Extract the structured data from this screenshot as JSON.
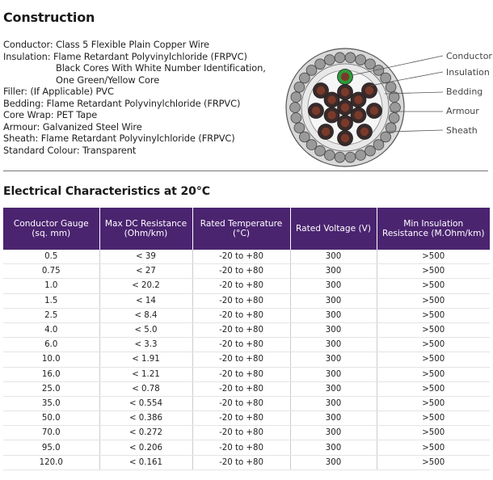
{
  "construction": {
    "title": "Construction",
    "lines": [
      "Conductor: Class 5 Flexible Plain Copper Wire",
      "Insulation: Flame Retardant Polyvinylchloride (FRPVC)",
      "Black Cores With White Number Identification,",
      "One Green/Yellow Core",
      "Filler: (If Applicable) PVC",
      "Bedding: Flame Retardant Polyvinylchloride (FRPVC)",
      "Core Wrap: PET Tape",
      "Armour: Galvanized Steel Wire",
      "Sheath: Flame Retardant Polyvinylchloride (FRPVC)",
      "Standard Colour: Transparent"
    ]
  },
  "diagram": {
    "labels": [
      "Conductor",
      "Insulation",
      "Bedding",
      "Armour",
      "Sheath"
    ],
    "colors": {
      "sheath": "#d9d9d9",
      "armour_wire": "#9a9a9a",
      "bedding": "#e8e8e8",
      "core": "#3a2a2a",
      "conductor": "#7a3a2a",
      "earth_core": "#2e9a3a"
    }
  },
  "electrical": {
    "title": "Electrical Characteristics at 20°C",
    "header_color": "#4b2470",
    "columns": [
      "Conductor Gauge (sq. mm)",
      "Max DC Resistance (Ohm/km)",
      "Rated Temperature (°C)",
      "Rated Voltage (V)",
      "Min Insulation Resistance (M.Ohm/km)"
    ],
    "rows": [
      [
        "0.5",
        "< 39",
        "-20 to +80",
        "300",
        ">500"
      ],
      [
        "0.75",
        "< 27",
        "-20 to +80",
        "300",
        ">500"
      ],
      [
        "1.0",
        "< 20.2",
        "-20 to +80",
        "300",
        ">500"
      ],
      [
        "1.5",
        "< 14",
        "-20 to +80",
        "300",
        ">500"
      ],
      [
        "2.5",
        "< 8.4",
        "-20 to +80",
        "300",
        ">500"
      ],
      [
        "4.0",
        "< 5.0",
        "-20 to +80",
        "300",
        ">500"
      ],
      [
        "6.0",
        "< 3.3",
        "-20 to +80",
        "300",
        ">500"
      ],
      [
        "10.0",
        "< 1.91",
        "-20 to +80",
        "300",
        ">500"
      ],
      [
        "16.0",
        "< 1.21",
        "-20 to +80",
        "300",
        ">500"
      ],
      [
        "25.0",
        "< 0.78",
        "-20 to +80",
        "300",
        ">500"
      ],
      [
        "35.0",
        "< 0.554",
        "-20 to +80",
        "300",
        ">500"
      ],
      [
        "50.0",
        "< 0.386",
        "-20 to +80",
        "300",
        ">500"
      ],
      [
        "70.0",
        "< 0.272",
        "-20 to +80",
        "300",
        ">500"
      ],
      [
        "95.0",
        "< 0.206",
        "-20 to +80",
        "300",
        ">500"
      ],
      [
        "120.0",
        "< 0.161",
        "-20 to +80",
        "300",
        ">500"
      ]
    ]
  }
}
